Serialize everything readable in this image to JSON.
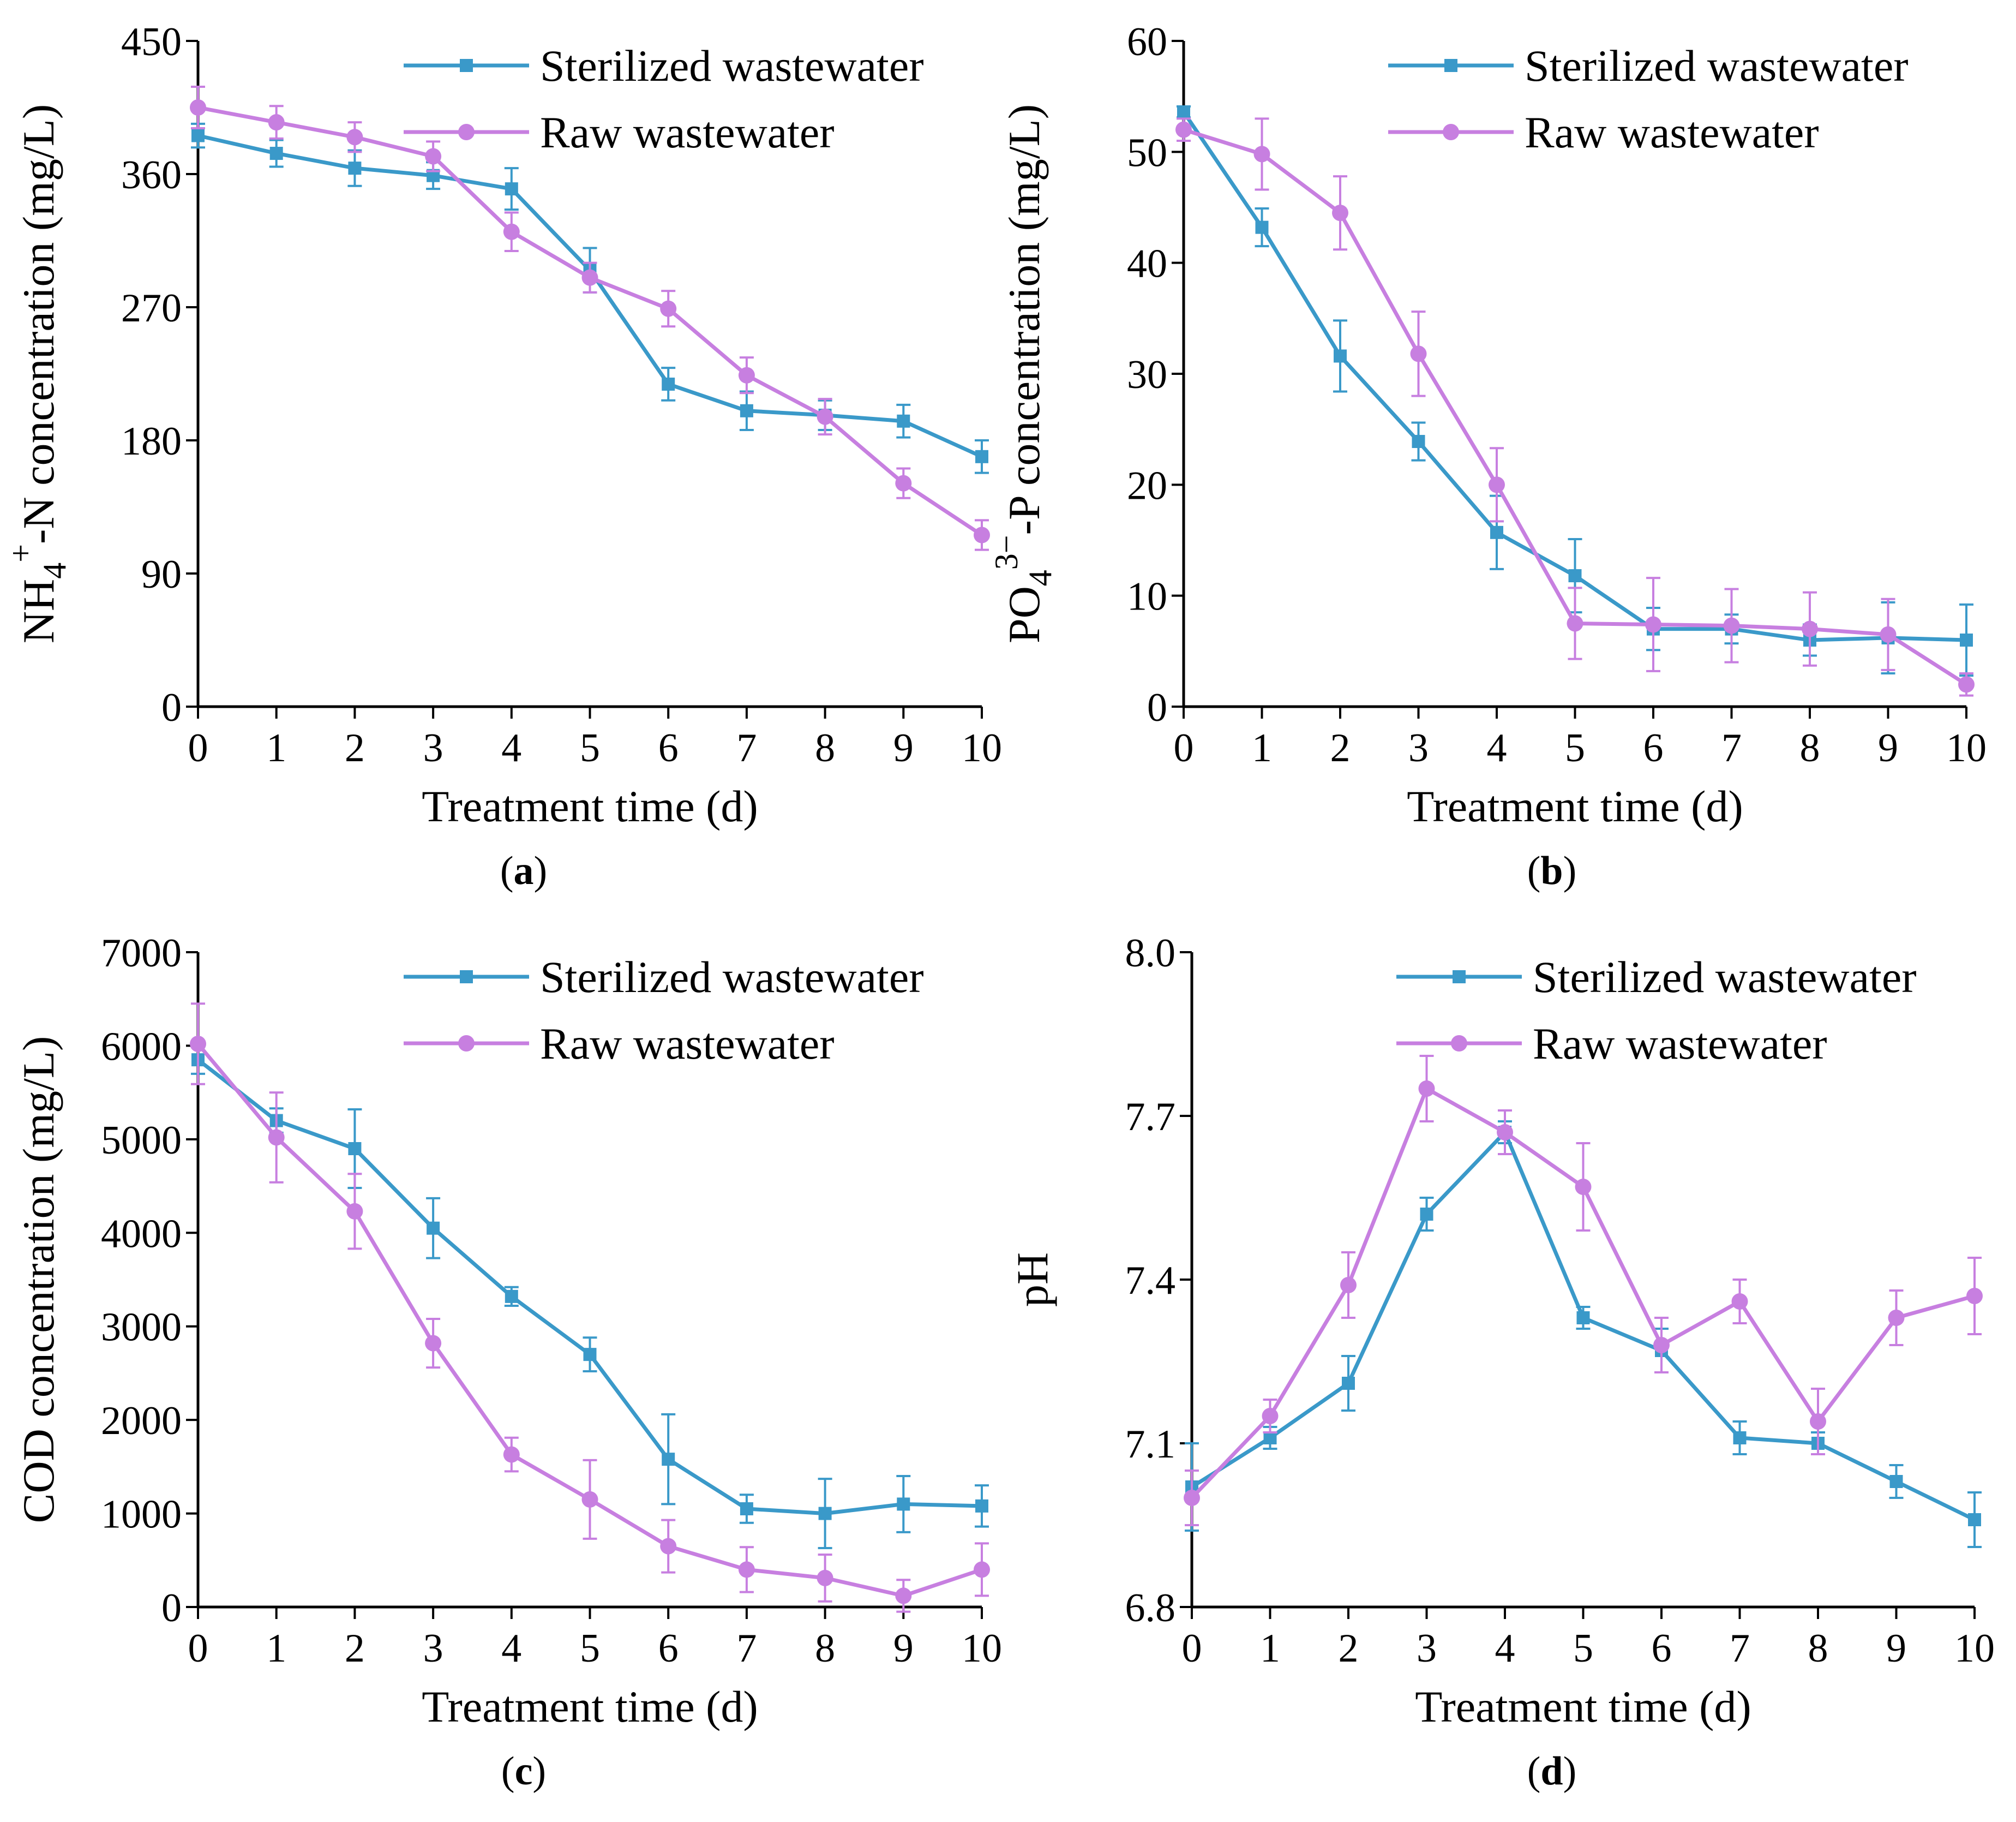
{
  "colors": {
    "sterilized": "#3a99c9",
    "raw": "#c77fe0",
    "axis": "#000000"
  },
  "chart_data": [
    {
      "type": "line",
      "panel": "a",
      "caption": {
        "open": "(",
        "letter": "a",
        "close": ")"
      },
      "xlabel": "Treatment time (d)",
      "ylabel": {
        "base": "NH",
        "sub": "4",
        "sup": "+",
        "rest": "-N concentration (mg/L)"
      },
      "ylim": [
        0,
        450
      ],
      "yticks": [
        "0",
        "90",
        "180",
        "270",
        "360",
        "450"
      ],
      "x": [
        0,
        1,
        2,
        3,
        4,
        5,
        6,
        7,
        8,
        9,
        10
      ],
      "xtick_labels": [
        "0",
        "1",
        "2",
        "3",
        "4",
        "5",
        "6",
        "7",
        "8",
        "9",
        "10"
      ],
      "series": [
        {
          "name": "Sterilized wastewater",
          "marker": "square",
          "values": [
            386,
            374,
            364,
            359,
            350,
            295,
            218,
            200,
            197,
            193,
            169
          ],
          "errors": [
            8,
            9,
            12,
            9,
            14,
            15,
            11,
            13,
            10,
            11,
            11
          ]
        },
        {
          "name": "Raw wastewater",
          "marker": "circle",
          "values": [
            405,
            395,
            385,
            372,
            321,
            290,
            269,
            224,
            196,
            151,
            116
          ],
          "errors": [
            14,
            11,
            10,
            10,
            13,
            10,
            12,
            12,
            12,
            10,
            10
          ]
        }
      ]
    },
    {
      "type": "line",
      "panel": "b",
      "caption": {
        "open": "(",
        "letter": "b",
        "close": ")"
      },
      "xlabel": "Treatment time (d)",
      "ylabel": {
        "base": "PO",
        "sub": "4",
        "sup": "3−",
        "rest": "-P concentration (mg/L)"
      },
      "ylim": [
        0,
        60
      ],
      "yticks": [
        "0",
        "10",
        "20",
        "30",
        "40",
        "50",
        "60"
      ],
      "x": [
        0,
        1,
        2,
        3,
        4,
        5,
        6,
        7,
        8,
        9,
        10
      ],
      "xtick_labels": [
        "0",
        "1",
        "2",
        "3",
        "4",
        "5",
        "6",
        "7",
        "8",
        "9",
        "10"
      ],
      "series": [
        {
          "name": "Sterilized wastewater",
          "marker": "square",
          "values": [
            53.6,
            43.2,
            31.6,
            23.9,
            15.7,
            11.8,
            7.0,
            7.0,
            6.0,
            6.2,
            6.0
          ],
          "errors": [
            0.5,
            1.7,
            3.2,
            1.7,
            3.3,
            3.3,
            1.9,
            1.3,
            1.4,
            3.2,
            3.2
          ]
        },
        {
          "name": "Raw wastewater",
          "marker": "circle",
          "values": [
            52.0,
            49.8,
            44.5,
            31.8,
            20.0,
            7.5,
            7.4,
            7.3,
            7.0,
            6.5,
            2.0
          ],
          "errors": [
            1.0,
            3.2,
            3.3,
            3.8,
            3.3,
            3.2,
            4.2,
            3.3,
            3.3,
            3.2,
            1.0
          ]
        }
      ]
    },
    {
      "type": "line",
      "panel": "c",
      "caption": {
        "open": "(",
        "letter": "c",
        "close": ")"
      },
      "xlabel": "Treatment time (d)",
      "ylabel": {
        "base": "COD concentration (mg/L)",
        "sub": "",
        "sup": "",
        "rest": ""
      },
      "ylim": [
        0,
        7000
      ],
      "yticks": [
        "0",
        "1000",
        "2000",
        "3000",
        "4000",
        "5000",
        "6000",
        "7000"
      ],
      "x": [
        0,
        1,
        2,
        3,
        4,
        5,
        6,
        7,
        8,
        9,
        10
      ],
      "xtick_labels": [
        "0",
        "1",
        "2",
        "3",
        "4",
        "5",
        "6",
        "7",
        "8",
        "9",
        "10"
      ],
      "series": [
        {
          "name": "Sterilized wastewater",
          "marker": "square",
          "values": [
            5850,
            5200,
            4900,
            4050,
            3320,
            2700,
            1580,
            1050,
            1000,
            1100,
            1080
          ],
          "errors": [
            150,
            130,
            420,
            320,
            100,
            180,
            480,
            150,
            370,
            300,
            220
          ]
        },
        {
          "name": "Raw wastewater",
          "marker": "circle",
          "values": [
            6020,
            5020,
            4230,
            2820,
            1630,
            1150,
            650,
            400,
            310,
            120,
            400
          ],
          "errors": [
            430,
            480,
            400,
            260,
            180,
            420,
            280,
            240,
            250,
            170,
            280
          ]
        }
      ]
    },
    {
      "type": "line",
      "panel": "d",
      "caption": {
        "open": "(",
        "letter": "d",
        "close": ")"
      },
      "xlabel": "Treatment time (d)",
      "ylabel": {
        "base": "pH",
        "sub": "",
        "sup": "",
        "rest": ""
      },
      "ylim": [
        6.8,
        8.0
      ],
      "yticks": [
        "6.8",
        "7.1",
        "7.4",
        "7.7",
        "8.0"
      ],
      "x": [
        0,
        1,
        2,
        3,
        4,
        5,
        6,
        7,
        8,
        9,
        10
      ],
      "xtick_labels": [
        "0",
        "1",
        "2",
        "3",
        "4",
        "5",
        "6",
        "7",
        "8",
        "9",
        "10"
      ],
      "series": [
        {
          "name": "Sterilized wastewater",
          "marker": "square",
          "values": [
            7.02,
            7.11,
            7.21,
            7.52,
            7.67,
            7.33,
            7.27,
            7.11,
            7.1,
            7.03,
            6.96
          ],
          "errors": [
            0.08,
            0.02,
            0.05,
            0.03,
            0.02,
            0.02,
            0.04,
            0.03,
            0.02,
            0.03,
            0.05
          ]
        },
        {
          "name": "Raw wastewater",
          "marker": "circle",
          "values": [
            7.0,
            7.15,
            7.39,
            7.75,
            7.67,
            7.57,
            7.28,
            7.36,
            7.14,
            7.33,
            7.37
          ],
          "errors": [
            0.05,
            0.03,
            0.06,
            0.06,
            0.04,
            0.08,
            0.05,
            0.04,
            0.06,
            0.05,
            0.07
          ]
        }
      ]
    }
  ]
}
